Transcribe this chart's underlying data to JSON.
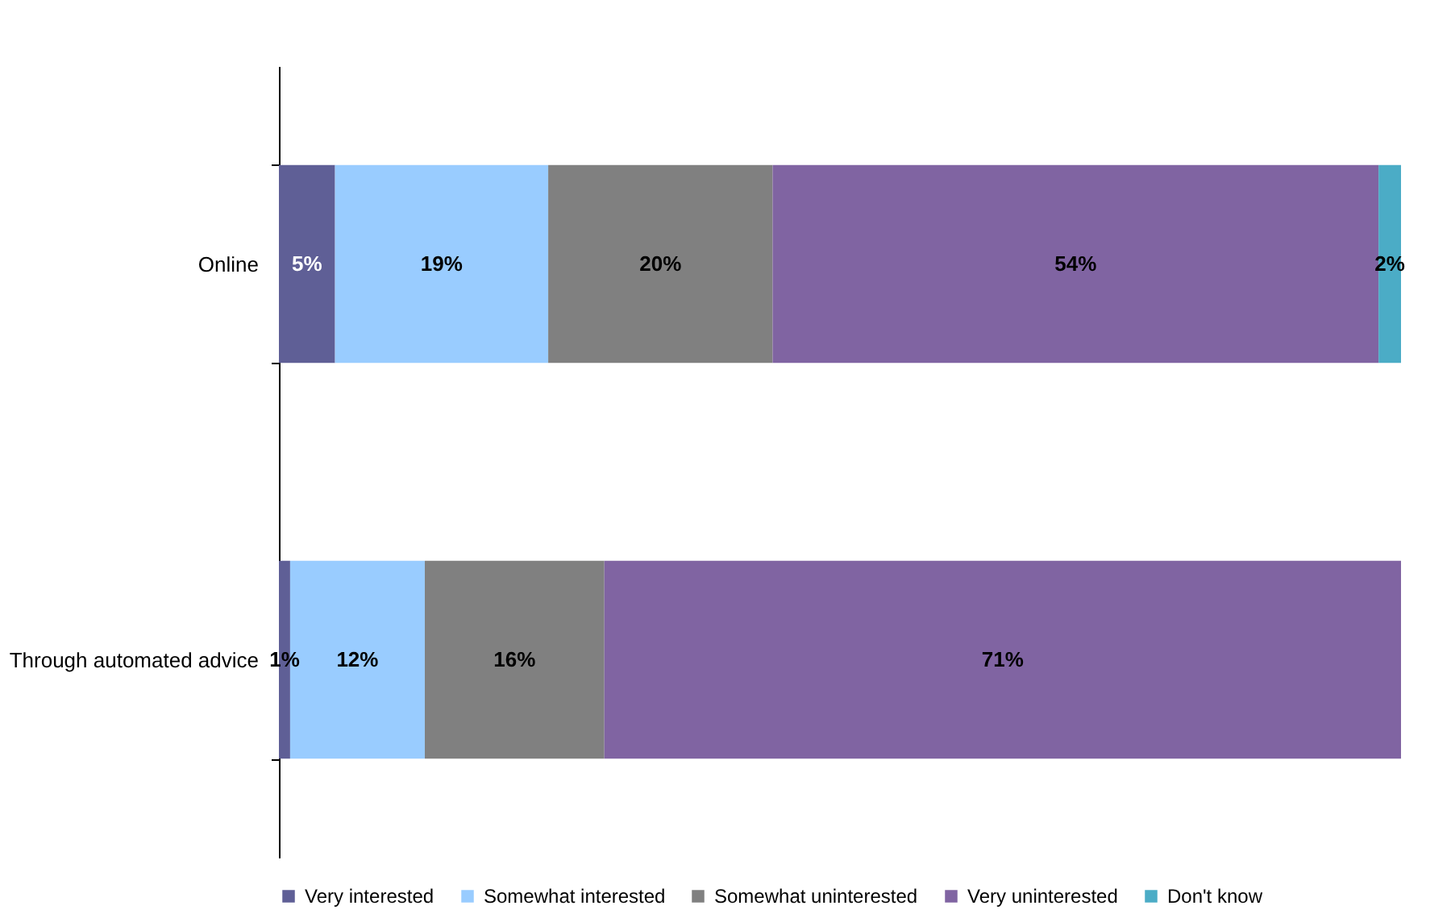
{
  "chart_data": {
    "type": "bar",
    "orientation": "horizontal",
    "stacked": true,
    "legend": "bottom",
    "grid": false,
    "tick_labels": "y",
    "categories": [
      "Online",
      "Through automated advice"
    ],
    "series": [
      {
        "name": "Very interested",
        "color": "#5f5f96",
        "values": [
          5,
          1
        ],
        "value_labels": [
          "5%",
          "1%"
        ]
      },
      {
        "name": "Somewhat interested",
        "color": "#99ccff",
        "values": [
          19,
          12
        ],
        "value_labels": [
          "19%",
          "12%"
        ]
      },
      {
        "name": "Somewhat uninterested",
        "color": "#808080",
        "values": [
          20,
          16
        ],
        "value_labels": [
          "20%",
          "16%"
        ]
      },
      {
        "name": "Very uninterested",
        "color": "#8064a2",
        "values": [
          54,
          71
        ],
        "value_labels": [
          "54%",
          "71%"
        ]
      },
      {
        "name": "Don't know",
        "color": "#4bacc6",
        "values": [
          2,
          null
        ],
        "value_labels": [
          "2%",
          null
        ]
      }
    ]
  }
}
